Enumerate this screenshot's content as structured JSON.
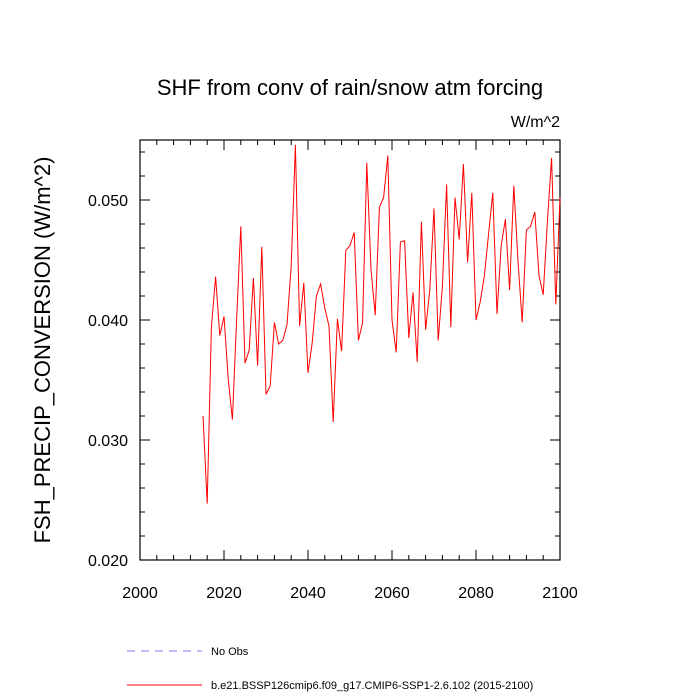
{
  "chart_data": {
    "type": "line",
    "title": "SHF from conv of rain/snow atm forcing",
    "units": "W/m^2",
    "xlabel": "",
    "ylabel": "FSH_PRECIP_CONVERSION  (W/m^2)",
    "xlim": [
      2000,
      2100
    ],
    "ylim": [
      0.02,
      0.055
    ],
    "xticks": [
      2000,
      2020,
      2040,
      2060,
      2080,
      2100
    ],
    "xtick_labels": [
      "2000",
      "2020",
      "2040",
      "2060",
      "2080",
      "2100"
    ],
    "yticks": [
      0.02,
      0.03,
      0.04,
      0.05
    ],
    "ytick_labels": [
      "0.020",
      "0.030",
      "0.040",
      "0.050"
    ],
    "series": [
      {
        "name": "b.e21.BSSP126cmip6.f09_g17.CMIP6-SSP1-2.6.102 (2015-2100)",
        "color": "#ff0000",
        "x": [
          2015,
          2016,
          2017,
          2018,
          2019,
          2020,
          2021,
          2022,
          2023,
          2024,
          2025,
          2026,
          2027,
          2028,
          2029,
          2030,
          2031,
          2032,
          2033,
          2034,
          2035,
          2036,
          2037,
          2038,
          2039,
          2040,
          2041,
          2042,
          2043,
          2044,
          2045,
          2046,
          2047,
          2048,
          2049,
          2050,
          2051,
          2052,
          2053,
          2054,
          2055,
          2056,
          2057,
          2058,
          2059,
          2060,
          2061,
          2062,
          2063,
          2064,
          2065,
          2066,
          2067,
          2068,
          2069,
          2070,
          2071,
          2072,
          2073,
          2074,
          2075,
          2076,
          2077,
          2078,
          2079,
          2080,
          2081,
          2082,
          2083,
          2084,
          2085,
          2086,
          2087,
          2088,
          2089,
          2090,
          2091,
          2092,
          2093,
          2094,
          2095,
          2096,
          2097,
          2098,
          2099,
          2100
        ],
        "values": [
          0.032,
          0.0247,
          0.0394,
          0.0436,
          0.0387,
          0.0403,
          0.0351,
          0.0317,
          0.04,
          0.0478,
          0.0364,
          0.0375,
          0.0435,
          0.0362,
          0.0461,
          0.0338,
          0.0345,
          0.0398,
          0.038,
          0.0383,
          0.0396,
          0.0445,
          0.0546,
          0.0395,
          0.0431,
          0.0356,
          0.0381,
          0.042,
          0.043,
          0.041,
          0.0395,
          0.0315,
          0.0401,
          0.0374,
          0.0458,
          0.0462,
          0.0473,
          0.0383,
          0.0398,
          0.0531,
          0.0442,
          0.0404,
          0.0494,
          0.0502,
          0.0537,
          0.04,
          0.0373,
          0.0465,
          0.0466,
          0.0385,
          0.0423,
          0.0365,
          0.0482,
          0.0392,
          0.0425,
          0.0493,
          0.0383,
          0.0428,
          0.0513,
          0.0394,
          0.0502,
          0.0467,
          0.053,
          0.0448,
          0.0506,
          0.04,
          0.0415,
          0.0437,
          0.0472,
          0.0506,
          0.0405,
          0.0462,
          0.0484,
          0.0425,
          0.0512,
          0.0449,
          0.0398,
          0.0475,
          0.0478,
          0.049,
          0.0437,
          0.0421,
          0.0482,
          0.0535,
          0.0413,
          0.0502
        ]
      },
      {
        "name": "No Obs",
        "color": "#8080ff",
        "x": [],
        "values": []
      }
    ],
    "legend": "bottom-left",
    "grid": false
  }
}
